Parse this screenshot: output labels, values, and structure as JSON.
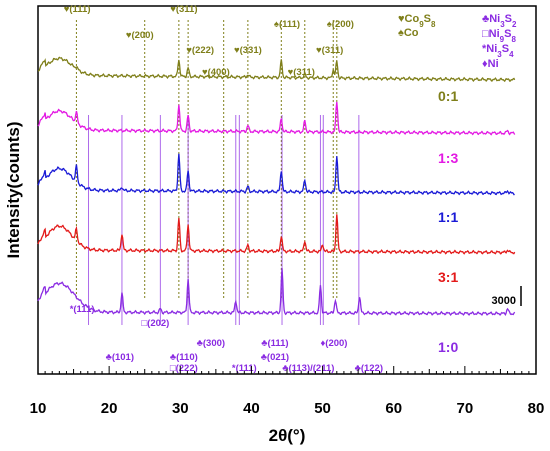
{
  "chart_data": {
    "type": "line",
    "xlabel": "2θ(°)",
    "ylabel": "Intensity(counts)",
    "xlim": [
      10,
      80
    ],
    "x_ticks": [
      "10",
      "20",
      "30",
      "40",
      "50",
      "60",
      "70",
      "80"
    ],
    "scale_bar_label": "3000",
    "legend": {
      "left": [
        {
          "symbol": "♥",
          "text": "Co9S8",
          "color": "#7f7f1a"
        },
        {
          "symbol": "♠",
          "text": "Co",
          "color": "#7f7f1a"
        }
      ],
      "right": [
        {
          "symbol": "♣",
          "text": "Ni3S2",
          "color": "#8a2be2"
        },
        {
          "symbol": "□",
          "text": "Ni9S8",
          "color": "#8a2be2"
        },
        {
          "symbol": "*",
          "text": "Ni3S4",
          "color": "#8a2be2"
        },
        {
          "symbol": "♦",
          "text": "Ni",
          "color": "#8a2be2"
        }
      ]
    },
    "series": [
      {
        "name": "0:1",
        "color": "#7f7f1a",
        "baseline": 58,
        "hump": {
          "center": 13,
          "height": 14,
          "width": 2.5
        },
        "slope": 0.06,
        "peaks": [
          [
            15.4,
            2
          ],
          [
            29.8,
            14
          ],
          [
            31.1,
            7
          ],
          [
            39.5,
            2
          ],
          [
            44.2,
            14
          ],
          [
            47.5,
            3
          ],
          [
            51.5,
            7
          ],
          [
            52.0,
            14
          ]
        ]
      },
      {
        "name": "1:3",
        "color": "#e31ae3",
        "baseline": 42,
        "hump": {
          "center": 13,
          "height": 16,
          "width": 2.5
        },
        "slope": 0.04,
        "peaks": [
          [
            15.4,
            9
          ],
          [
            29.8,
            22
          ],
          [
            31.1,
            13
          ],
          [
            39.5,
            5
          ],
          [
            44.2,
            11
          ],
          [
            47.5,
            9
          ],
          [
            52.0,
            26
          ],
          [
            76.0,
            2
          ]
        ]
      },
      {
        "name": "1:1",
        "color": "#1a1ad6",
        "baseline": 45,
        "hump": {
          "center": 13,
          "height": 18,
          "width": 2.5
        },
        "slope": 0.04,
        "peaks": [
          [
            15.4,
            13
          ],
          [
            21.8,
            3
          ],
          [
            29.8,
            31
          ],
          [
            31.1,
            17
          ],
          [
            39.5,
            4
          ],
          [
            44.2,
            18
          ],
          [
            47.5,
            10
          ],
          [
            52.0,
            31
          ],
          [
            76.0,
            2
          ]
        ]
      },
      {
        "name": "3:1",
        "color": "#e31a1a",
        "baseline": 38,
        "hump": {
          "center": 13,
          "height": 20,
          "width": 2.5
        },
        "slope": 0.03,
        "peaks": [
          [
            15.4,
            10
          ],
          [
            21.8,
            14
          ],
          [
            29.8,
            27
          ],
          [
            31.1,
            22
          ],
          [
            39.5,
            5
          ],
          [
            44.2,
            13
          ],
          [
            47.5,
            9
          ],
          [
            50.0,
            6
          ],
          [
            52.0,
            31
          ],
          [
            76.0,
            2
          ]
        ]
      },
      {
        "name": "1:0",
        "color": "#8a2be2",
        "baseline": 28,
        "hump": {
          "center": 13,
          "height": 24,
          "width": 3
        },
        "slope": 0.02,
        "peaks": [
          [
            21.8,
            16
          ],
          [
            27.2,
            3
          ],
          [
            31.1,
            28
          ],
          [
            37.8,
            10
          ],
          [
            44.3,
            36
          ],
          [
            49.7,
            23
          ],
          [
            51.8,
            11
          ],
          [
            55.2,
            14
          ],
          [
            76.0,
            4
          ]
        ]
      }
    ],
    "reference_lines": {
      "olive": [
        15.4,
        25.0,
        29.8,
        31.1,
        36.1,
        39.5,
        44.2,
        47.5,
        51.5,
        52.0
      ],
      "purple": [
        17.1,
        21.8,
        27.2,
        31.1,
        37.8,
        38.3,
        44.3,
        49.7,
        50.1,
        55.1
      ]
    },
    "annotations": [
      {
        "text": "♥(111)",
        "x": 15.5,
        "row": 0,
        "color": "#7f7f1a"
      },
      {
        "text": "♥(311)",
        "x": 30.5,
        "row": 0,
        "color": "#7f7f1a"
      },
      {
        "text": "♠(111)",
        "x": 45.0,
        "row": 1,
        "color": "#7f7f1a"
      },
      {
        "text": "♠(200)",
        "x": 52.5,
        "row": 1,
        "color": "#7f7f1a"
      },
      {
        "text": "♥(200)",
        "x": 24.3,
        "row": 2,
        "color": "#7f7f1a"
      },
      {
        "text": "♥(222)",
        "x": 32.8,
        "row": 3,
        "color": "#7f7f1a"
      },
      {
        "text": "♥(331)",
        "x": 39.5,
        "row": 4,
        "color": "#7f7f1a"
      },
      {
        "text": "♥(311)",
        "x": 51.0,
        "row": 4,
        "color": "#7f7f1a"
      },
      {
        "text": "♥(400)",
        "x": 35.0,
        "row": 5,
        "color": "#7f7f1a"
      },
      {
        "text": "♥(311)",
        "x": 47.0,
        "row": 5,
        "color": "#7f7f1a"
      },
      {
        "text": "*(111)",
        "x": 16.2,
        "row": 6,
        "color": "#8a2be2"
      },
      {
        "text": "□(202)",
        "x": 26.5,
        "row": 7,
        "color": "#8a2be2"
      },
      {
        "text": "♣(300)",
        "x": 34.3,
        "row": 8,
        "color": "#8a2be2"
      },
      {
        "text": "♣(111)",
        "x": 43.3,
        "row": 8,
        "color": "#8a2be2"
      },
      {
        "text": "♦(200)",
        "x": 51.6,
        "row": 8,
        "color": "#8a2be2"
      },
      {
        "text": "♣(101)",
        "x": 21.5,
        "row": 9,
        "color": "#8a2be2"
      },
      {
        "text": "♣(110)",
        "x": 30.5,
        "row": 9,
        "color": "#8a2be2"
      },
      {
        "text": "♣(021)",
        "x": 43.3,
        "row": 9,
        "color": "#8a2be2"
      },
      {
        "text": "♣(122)",
        "x": 56.5,
        "row": 10,
        "color": "#8a2be2"
      },
      {
        "text": "□(222)",
        "x": 30.5,
        "row": 10,
        "color": "#8a2be2"
      },
      {
        "text": "*(111)",
        "x": 39.0,
        "row": 11,
        "color": "#8a2be2"
      },
      {
        "text": "♣(113)/(211)",
        "x": 48.0,
        "row": 11,
        "color": "#8a2be2"
      }
    ]
  }
}
